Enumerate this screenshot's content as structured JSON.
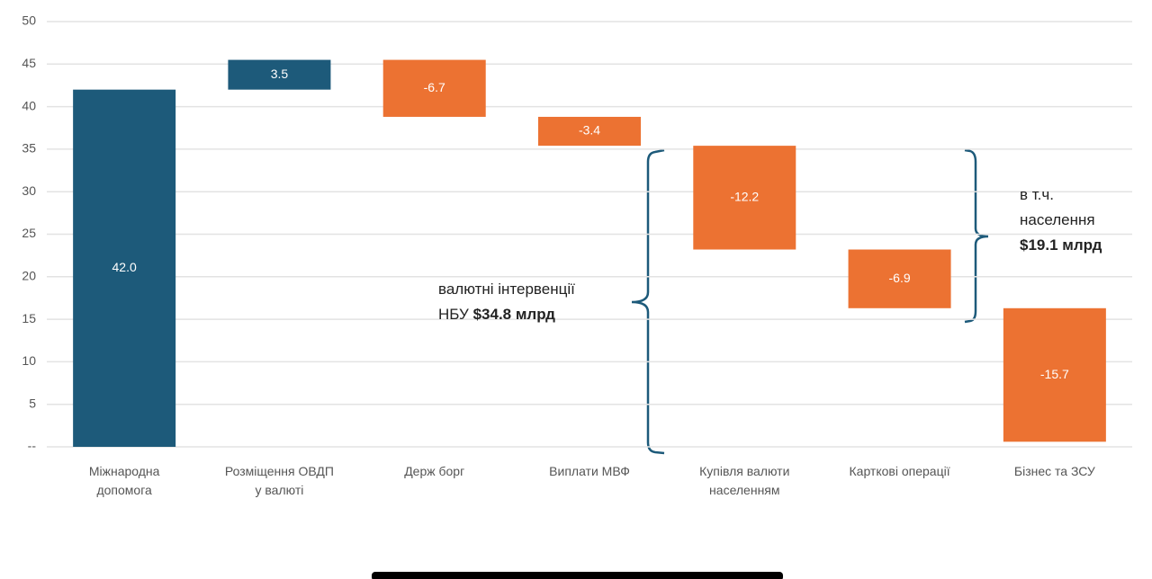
{
  "chart_data": {
    "type": "waterfall",
    "categories": [
      "Міжнародна\nдопомога",
      "Розміщення ОВДП\nу валюті",
      "Держ борг",
      "Виплати МВФ",
      "Купівля валюти\nнаселенням",
      "Карткові операції",
      "Бізнес та ЗСУ"
    ],
    "values": [
      42.0,
      3.5,
      -6.7,
      -3.4,
      -12.2,
      -6.9,
      -15.7
    ],
    "value_labels": [
      "42.0",
      "3.5",
      "-6.7",
      "-3.4",
      "-12.2",
      "-6.9",
      "-15.7"
    ],
    "colors": [
      "#1d5a7a",
      "#1d5a7a",
      "#ec7232",
      "#ec7232",
      "#ec7232",
      "#ec7232",
      "#ec7232"
    ],
    "ylim": [
      0,
      50
    ],
    "yticks": [
      {
        "value": 0,
        "label": "--"
      },
      5,
      10,
      15,
      20,
      25,
      30,
      35,
      40,
      45,
      50
    ],
    "grid": true,
    "annotations": [
      {
        "lines": [
          "валютні інтервенції",
          "НБУ"
        ],
        "highlight": "$34.8 млрд"
      },
      {
        "lines": [
          "в т.ч.",
          "населення"
        ],
        "highlight": "$19.1 млрд"
      }
    ]
  }
}
